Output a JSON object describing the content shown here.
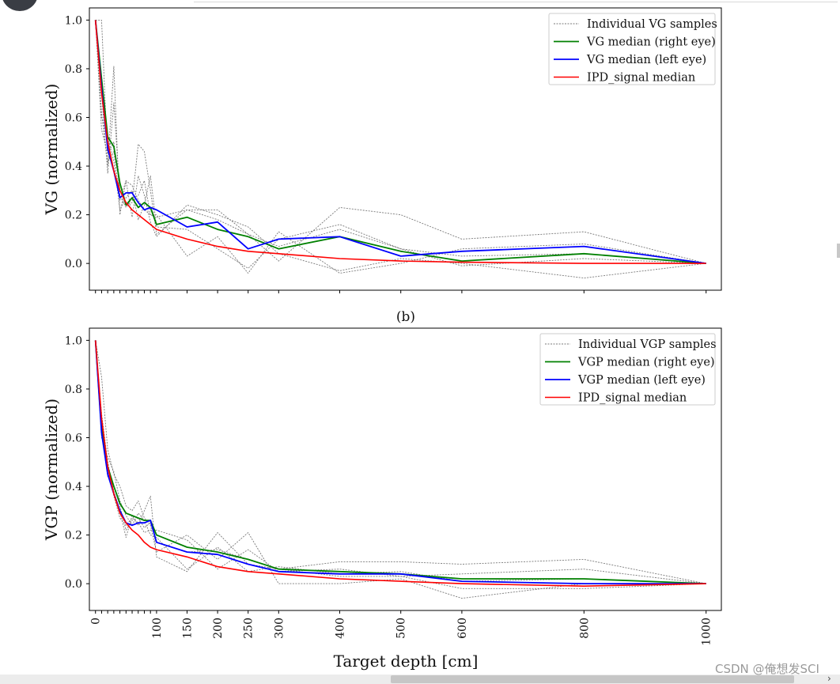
{
  "watermark": "CSDN @俺想发SCI",
  "figure": {
    "xlabel": "Target depth [cm]"
  },
  "colors": {
    "sample": "#7a7a7a",
    "green": "#008000",
    "blue": "#0000ff",
    "red": "#ff0000"
  },
  "chart_data": [
    {
      "type": "line",
      "panel_label": "",
      "ylabel": "VG (normalized)",
      "xlabel": "",
      "xlim": [
        -10,
        1025
      ],
      "ylim": [
        -0.11,
        1.05
      ],
      "yticks": [
        0.0,
        0.2,
        0.4,
        0.6,
        0.8,
        1.0
      ],
      "ytick_labels": [
        "0.0",
        "0.2",
        "0.4",
        "0.6",
        "0.8",
        "1.0"
      ],
      "xticks": [
        0,
        10,
        20,
        30,
        40,
        50,
        60,
        70,
        80,
        90,
        100,
        150,
        200,
        250,
        300,
        400,
        500,
        600,
        800,
        1000
      ],
      "xtick_labels_shown": false,
      "grid": false,
      "legend_position": "top-right",
      "legend": [
        "Individual VG samples",
        "VG median (right eye)",
        "VG median (left eye)",
        "IPD_signal median"
      ],
      "series": [
        {
          "name": "Individual VG samples",
          "style": "sample",
          "x": [
            0,
            10,
            20,
            30,
            40,
            50,
            60,
            70,
            80,
            90,
            100,
            150,
            200,
            250,
            300,
            400,
            500,
            600,
            800,
            1000
          ],
          "y": [
            1.0,
            0.62,
            0.4,
            0.81,
            0.2,
            0.34,
            0.32,
            0.26,
            0.22,
            0.2,
            0.19,
            0.22,
            0.18,
            0.12,
            0.07,
            0.14,
            0.06,
            0.03,
            0.04,
            0.0
          ]
        },
        {
          "name": "",
          "style": "sample",
          "x": [
            0,
            10,
            20,
            30,
            40,
            50,
            60,
            70,
            80,
            90,
            100,
            150,
            200,
            250,
            300,
            400,
            500,
            600,
            800,
            1000
          ],
          "y": [
            1.0,
            0.55,
            0.45,
            0.5,
            0.3,
            0.24,
            0.25,
            0.49,
            0.46,
            0.3,
            0.12,
            0.22,
            0.22,
            0.12,
            0.01,
            0.23,
            0.2,
            0.1,
            0.13,
            0.0
          ]
        },
        {
          "name": "",
          "style": "sample",
          "x": [
            0,
            10,
            20,
            30,
            40,
            50,
            60,
            70,
            80,
            90,
            100,
            150,
            200,
            250,
            300,
            400,
            500,
            600,
            800,
            1000
          ],
          "y": [
            1.0,
            1.0,
            0.42,
            0.46,
            0.26,
            0.34,
            0.19,
            0.36,
            0.28,
            0.17,
            0.11,
            0.24,
            0.2,
            0.15,
            0.04,
            -0.03,
            0.02,
            0.0,
            -0.06,
            0.0
          ]
        },
        {
          "name": "",
          "style": "sample",
          "x": [
            0,
            10,
            20,
            30,
            40,
            50,
            60,
            70,
            80,
            90,
            100,
            150,
            200,
            250,
            300,
            400,
            500,
            600,
            800,
            1000
          ],
          "y": [
            1.0,
            0.7,
            0.37,
            0.66,
            0.28,
            0.23,
            0.27,
            0.28,
            0.34,
            0.2,
            0.2,
            0.03,
            0.11,
            -0.04,
            0.13,
            -0.04,
            0.0,
            0.06,
            0.08,
            0.0
          ]
        },
        {
          "name": "",
          "style": "sample",
          "x": [
            0,
            10,
            20,
            30,
            40,
            50,
            60,
            70,
            80,
            90,
            100,
            150,
            200,
            250,
            300,
            400,
            500,
            600,
            800,
            1000
          ],
          "y": [
            1.0,
            0.6,
            0.52,
            0.42,
            0.22,
            0.27,
            0.3,
            0.18,
            0.24,
            0.36,
            0.15,
            0.14,
            0.06,
            -0.02,
            0.1,
            0.16,
            0.06,
            -0.01,
            0.02,
            0.0
          ]
        },
        {
          "name": "VG median (right eye)",
          "style": "green",
          "x": [
            0,
            10,
            20,
            30,
            40,
            50,
            60,
            70,
            80,
            90,
            100,
            150,
            200,
            250,
            300,
            400,
            500,
            600,
            800,
            1000
          ],
          "y": [
            1.0,
            0.76,
            0.52,
            0.48,
            0.33,
            0.24,
            0.27,
            0.23,
            0.25,
            0.23,
            0.16,
            0.19,
            0.14,
            0.11,
            0.06,
            0.11,
            0.05,
            0.01,
            0.04,
            0.0
          ]
        },
        {
          "name": "VG median (left eye)",
          "style": "blue",
          "x": [
            0,
            10,
            20,
            30,
            40,
            50,
            60,
            70,
            80,
            90,
            100,
            150,
            200,
            250,
            300,
            400,
            500,
            600,
            800,
            1000
          ],
          "y": [
            1.0,
            0.72,
            0.47,
            0.38,
            0.27,
            0.29,
            0.29,
            0.25,
            0.22,
            0.23,
            0.22,
            0.15,
            0.17,
            0.06,
            0.1,
            0.11,
            0.03,
            0.05,
            0.07,
            0.0
          ]
        },
        {
          "name": "IPD_signal median",
          "style": "red",
          "x": [
            0,
            10,
            20,
            30,
            40,
            50,
            60,
            70,
            80,
            90,
            100,
            150,
            200,
            250,
            300,
            400,
            500,
            600,
            800,
            1000
          ],
          "y": [
            1.0,
            0.7,
            0.5,
            0.38,
            0.3,
            0.25,
            0.22,
            0.2,
            0.18,
            0.16,
            0.14,
            0.1,
            0.07,
            0.05,
            0.04,
            0.02,
            0.01,
            0.005,
            0.0,
            0.0
          ]
        }
      ]
    },
    {
      "type": "line",
      "panel_label": "(b)",
      "ylabel": "VGP (normalized)",
      "xlabel": "Target depth [cm]",
      "xlim": [
        -10,
        1025
      ],
      "ylim": [
        -0.11,
        1.05
      ],
      "yticks": [
        0.0,
        0.2,
        0.4,
        0.6,
        0.8,
        1.0
      ],
      "ytick_labels": [
        "0.0",
        "0.2",
        "0.4",
        "0.6",
        "0.8",
        "1.0"
      ],
      "xticks": [
        0,
        10,
        20,
        30,
        40,
        50,
        60,
        70,
        80,
        90,
        100,
        150,
        200,
        250,
        300,
        400,
        500,
        600,
        800,
        1000
      ],
      "xtick_labels": [
        "0",
        "100",
        "150",
        "200",
        "250",
        "300",
        "400",
        "500",
        "600",
        "800",
        "1000"
      ],
      "xtick_label_values": [
        0,
        100,
        150,
        200,
        250,
        300,
        400,
        500,
        600,
        800,
        1000
      ],
      "grid": false,
      "legend_position": "top-right",
      "legend": [
        "Individual VGP samples",
        "VGP median (right eye)",
        "VGP median (left eye)",
        "IPD_signal median"
      ],
      "series": [
        {
          "name": "Individual VGP samples",
          "style": "sample",
          "x": [
            0,
            10,
            20,
            30,
            40,
            50,
            60,
            70,
            80,
            90,
            100,
            150,
            200,
            250,
            300,
            400,
            500,
            600,
            800,
            1000
          ],
          "y": [
            1.0,
            0.85,
            0.55,
            0.45,
            0.4,
            0.32,
            0.3,
            0.34,
            0.27,
            0.24,
            0.13,
            0.2,
            0.1,
            0.21,
            0.0,
            0.0,
            0.02,
            -0.06,
            0.0,
            0.0
          ]
        },
        {
          "name": "",
          "style": "sample",
          "x": [
            0,
            10,
            20,
            30,
            40,
            50,
            60,
            70,
            80,
            90,
            100,
            150,
            200,
            250,
            300,
            400,
            500,
            600,
            800,
            1000
          ],
          "y": [
            1.0,
            0.7,
            0.5,
            0.38,
            0.3,
            0.19,
            0.28,
            0.24,
            0.3,
            0.36,
            0.11,
            0.05,
            0.21,
            0.08,
            0.06,
            0.09,
            0.09,
            0.08,
            0.1,
            0.0
          ]
        },
        {
          "name": "",
          "style": "sample",
          "x": [
            0,
            10,
            20,
            30,
            40,
            50,
            60,
            70,
            80,
            90,
            100,
            150,
            200,
            250,
            300,
            400,
            500,
            600,
            800,
            1000
          ],
          "y": [
            1.0,
            0.65,
            0.47,
            0.36,
            0.27,
            0.24,
            0.27,
            0.25,
            0.21,
            0.22,
            0.22,
            0.18,
            0.06,
            0.14,
            0.05,
            0.06,
            0.03,
            -0.02,
            -0.02,
            0.0
          ]
        },
        {
          "name": "",
          "style": "sample",
          "x": [
            0,
            10,
            20,
            30,
            40,
            50,
            60,
            70,
            80,
            90,
            100,
            150,
            200,
            250,
            300,
            400,
            500,
            600,
            800,
            1000
          ],
          "y": [
            1.0,
            0.6,
            0.52,
            0.46,
            0.34,
            0.28,
            0.24,
            0.29,
            0.26,
            0.2,
            0.19,
            0.06,
            0.15,
            0.05,
            0.07,
            0.04,
            0.05,
            0.01,
            0.02,
            0.0
          ]
        },
        {
          "name": "",
          "style": "sample",
          "x": [
            0,
            10,
            20,
            30,
            40,
            50,
            60,
            70,
            80,
            90,
            100,
            150,
            200,
            250,
            300,
            400,
            500,
            600,
            800,
            1000
          ],
          "y": [
            1.0,
            0.62,
            0.44,
            0.4,
            0.32,
            0.22,
            0.26,
            0.27,
            0.23,
            0.25,
            0.17,
            0.13,
            0.14,
            0.1,
            0.06,
            0.03,
            0.03,
            0.04,
            0.06,
            0.0
          ]
        },
        {
          "name": "VGP median (right eye)",
          "style": "green",
          "x": [
            0,
            10,
            20,
            30,
            40,
            50,
            60,
            70,
            80,
            90,
            100,
            150,
            200,
            250,
            300,
            400,
            500,
            600,
            800,
            1000
          ],
          "y": [
            1.0,
            0.64,
            0.48,
            0.4,
            0.33,
            0.29,
            0.28,
            0.27,
            0.26,
            0.26,
            0.2,
            0.15,
            0.13,
            0.1,
            0.06,
            0.05,
            0.04,
            0.02,
            0.02,
            0.0
          ]
        },
        {
          "name": "VGP median (left eye)",
          "style": "blue",
          "x": [
            0,
            10,
            20,
            30,
            40,
            50,
            60,
            70,
            80,
            90,
            100,
            150,
            200,
            250,
            300,
            400,
            500,
            600,
            800,
            1000
          ],
          "y": [
            1.0,
            0.62,
            0.45,
            0.37,
            0.3,
            0.25,
            0.24,
            0.25,
            0.25,
            0.26,
            0.17,
            0.13,
            0.12,
            0.08,
            0.05,
            0.04,
            0.04,
            0.01,
            0.0,
            0.0
          ]
        },
        {
          "name": "IPD_signal median",
          "style": "red",
          "x": [
            0,
            10,
            20,
            30,
            40,
            50,
            60,
            70,
            80,
            90,
            100,
            150,
            200,
            250,
            300,
            400,
            500,
            600,
            800,
            1000
          ],
          "y": [
            1.0,
            0.68,
            0.48,
            0.37,
            0.29,
            0.25,
            0.22,
            0.2,
            0.17,
            0.15,
            0.14,
            0.11,
            0.07,
            0.05,
            0.04,
            0.02,
            0.01,
            0.0,
            -0.01,
            0.0
          ]
        }
      ]
    }
  ]
}
